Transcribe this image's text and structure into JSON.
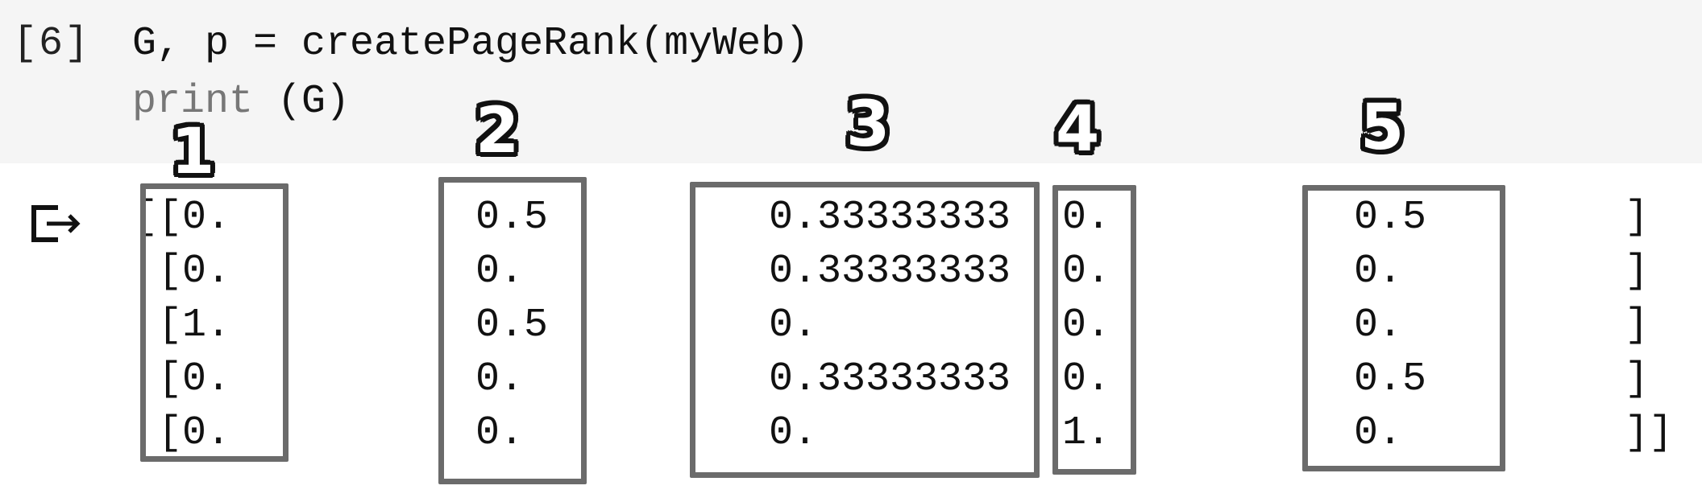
{
  "code_cell": {
    "execution_count": "[6]",
    "lines": [
      {
        "text": "G, p = createPageRank(myWeb)"
      },
      {
        "keyword": "print",
        "rest": " (G)"
      }
    ]
  },
  "output": {
    "open_bracket": "[",
    "rows": [
      {
        "c1": "[0.",
        "c2": "0.5",
        "c3": "0.33333333",
        "c4": "0.",
        "c5": "0.5",
        "close": "]"
      },
      {
        "c1": "[0.",
        "c2": "0.",
        "c3": "0.33333333",
        "c4": "0.",
        "c5": "0.",
        "close": "]"
      },
      {
        "c1": "[1.",
        "c2": "0.5",
        "c3": "0.",
        "c4": "0.",
        "c5": "0.",
        "close": "]"
      },
      {
        "c1": "[0.",
        "c2": "0.",
        "c3": "0.33333333",
        "c4": "0.",
        "c5": "0.5",
        "close": "]"
      },
      {
        "c1": "[0.",
        "c2": "0.",
        "c3": "0.",
        "c4": "1.",
        "c5": "0.",
        "close": "]]"
      }
    ]
  },
  "annotations": {
    "labels": [
      "1",
      "2",
      "3",
      "4",
      "5"
    ],
    "box_color": "#6b6b6b"
  },
  "icons": {
    "output": "output-arrow-icon"
  }
}
